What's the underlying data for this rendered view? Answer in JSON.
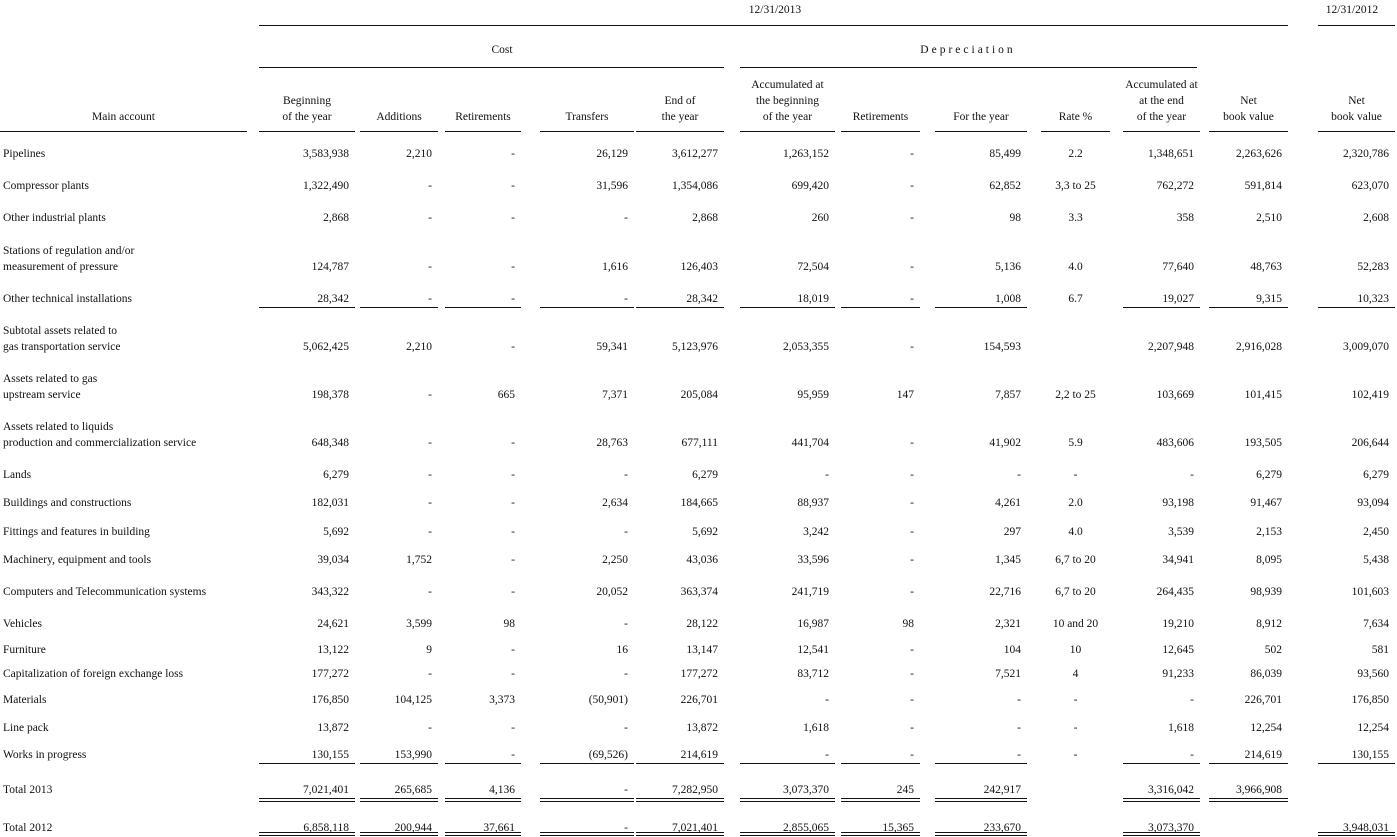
{
  "header": {
    "date_current": "12/31/2013",
    "date_prior": "12/31/2012",
    "cost": "Cost",
    "depreciation": "Depreciation",
    "main_account": "Main account",
    "columns": [
      [
        "Beginning",
        "of the year"
      ],
      [
        "Additions"
      ],
      [
        "Retirements"
      ],
      [
        "Transfers"
      ],
      [
        "End of",
        "the year"
      ],
      [
        "Accumulated at",
        "the beginning",
        "of the year"
      ],
      [
        "Retirements"
      ],
      [
        "For the year"
      ],
      [
        "Rate %"
      ],
      [
        "Accumulated at",
        "at the end",
        "of the year"
      ],
      [
        "Net",
        "book value"
      ],
      [
        "Net",
        "book value"
      ]
    ]
  },
  "rows": [
    {
      "label": [
        "Pipelines"
      ],
      "values": [
        "3,583,938",
        "2,210",
        "-",
        "26,129",
        "3,612,277",
        "1,263,152",
        "-",
        "85,499",
        "2.2",
        "1,348,651",
        "2,263,626",
        "2,320,786"
      ]
    },
    {
      "label": [
        "Compressor plants"
      ],
      "values": [
        "1,322,490",
        "-",
        "-",
        "31,596",
        "1,354,086",
        "699,420",
        "-",
        "62,852",
        "3,3 to 25",
        "762,272",
        "591,814",
        "623,070"
      ]
    },
    {
      "label": [
        "Other industrial plants"
      ],
      "values": [
        "2,868",
        "-",
        "-",
        "-",
        "2,868",
        "260",
        "-",
        "98",
        "3.3",
        "358",
        "2,510",
        "2,608"
      ]
    },
    {
      "label": [
        "Stations of regulation and/or",
        "measurement of pressure"
      ],
      "values": [
        "124,787",
        "-",
        "-",
        "1,616",
        "126,403",
        "72,504",
        "-",
        "5,136",
        "4.0",
        "77,640",
        "48,763",
        "52,283"
      ]
    },
    {
      "label": [
        "Other technical installations"
      ],
      "values": [
        "28,342",
        "-",
        "-",
        "-",
        "28,342",
        "18,019",
        "-",
        "1,008",
        "6.7",
        "19,027",
        "9,315",
        "10,323"
      ]
    },
    {
      "label": [
        "Subtotal assets related to",
        "gas transportation service"
      ],
      "values": [
        "5,062,425",
        "2,210",
        "-",
        "59,341",
        "5,123,976",
        "2,053,355",
        "-",
        "154,593",
        null,
        "2,207,948",
        "2,916,028",
        "3,009,070"
      ]
    },
    {
      "label": [
        "Assets related to gas",
        "upstream service"
      ],
      "values": [
        "198,378",
        "-",
        "665",
        "7,371",
        "205,084",
        "95,959",
        "147",
        "7,857",
        "2,2 to 25",
        "103,669",
        "101,415",
        "102,419"
      ]
    },
    {
      "label": [
        "Assets related to liquids",
        "production and commercialization service"
      ],
      "values": [
        "648,348",
        "-",
        "-",
        "28,763",
        "677,111",
        "441,704",
        "-",
        "41,902",
        "5.9",
        "483,606",
        "193,505",
        "206,644"
      ]
    },
    {
      "label": [
        "Lands"
      ],
      "values": [
        "6,279",
        "-",
        "-",
        "-",
        "6,279",
        "-",
        "-",
        "-",
        "-",
        "-",
        "6,279",
        "6,279"
      ]
    },
    {
      "label": [
        "Buildings and constructions"
      ],
      "values": [
        "182,031",
        "-",
        "-",
        "2,634",
        "184,665",
        "88,937",
        "-",
        "4,261",
        "2.0",
        "93,198",
        "91,467",
        "93,094"
      ]
    },
    {
      "label": [
        "Fittings and features in building"
      ],
      "values": [
        "5,692",
        "-",
        "-",
        "-",
        "5,692",
        "3,242",
        "-",
        "297",
        "4.0",
        "3,539",
        "2,153",
        "2,450"
      ]
    },
    {
      "label": [
        "Machinery, equipment and tools"
      ],
      "values": [
        "39,034",
        "1,752",
        "-",
        "2,250",
        "43,036",
        "33,596",
        "-",
        "1,345",
        "6,7 to 20",
        "34,941",
        "8,095",
        "5,438"
      ]
    },
    {
      "label": [
        "Computers and Telecommunication systems"
      ],
      "values": [
        "343,322",
        "-",
        "-",
        "20,052",
        "363,374",
        "241,719",
        "-",
        "22,716",
        "6,7 to 20",
        "264,435",
        "98,939",
        "101,603"
      ]
    },
    {
      "label": [
        "Vehicles"
      ],
      "values": [
        "24,621",
        "3,599",
        "98",
        "-",
        "28,122",
        "16,987",
        "98",
        "2,321",
        "10 and 20",
        "19,210",
        "8,912",
        "7,634"
      ]
    },
    {
      "label": [
        "Furniture"
      ],
      "values": [
        "13,122",
        "9",
        "-",
        "16",
        "13,147",
        "12,541",
        "-",
        "104",
        "10",
        "12,645",
        "502",
        "581"
      ]
    },
    {
      "label": [
        "Capitalization of foreign exchange loss"
      ],
      "values": [
        "177,272",
        "-",
        "-",
        "-",
        "177,272",
        "83,712",
        "-",
        "7,521",
        "4",
        "91,233",
        "86,039",
        "93,560"
      ]
    },
    {
      "label": [
        "Materials"
      ],
      "values": [
        "176,850",
        "104,125",
        "3,373",
        "(50,901)",
        "226,701",
        "-",
        "-",
        "-",
        "-",
        "-",
        "226,701",
        "176,850"
      ]
    },
    {
      "label": [
        "Line pack"
      ],
      "values": [
        "13,872",
        "-",
        "-",
        "-",
        "13,872",
        "1,618",
        "-",
        "-",
        "-",
        "1,618",
        "12,254",
        "12,254"
      ]
    },
    {
      "label": [
        "Works in progress"
      ],
      "values": [
        "130,155",
        "153,990",
        "-",
        "(69,526)",
        "214,619",
        "-",
        "-",
        "-",
        "-",
        "-",
        "214,619",
        "130,155"
      ]
    },
    {
      "label": [
        "Total 2013"
      ],
      "values": [
        "7,021,401",
        "265,685",
        "4,136",
        "-",
        "7,282,950",
        "3,073,370",
        "245",
        "242,917",
        null,
        "3,316,042",
        "3,966,908",
        null
      ]
    },
    {
      "label": [
        "Total 2012"
      ],
      "values": [
        "6,858,118",
        "200,944",
        "37,661",
        "-",
        "7,021,401",
        "2,855,065",
        "15,365",
        "233,670",
        null,
        "3,073,370",
        null,
        "3,948,031"
      ]
    }
  ]
}
